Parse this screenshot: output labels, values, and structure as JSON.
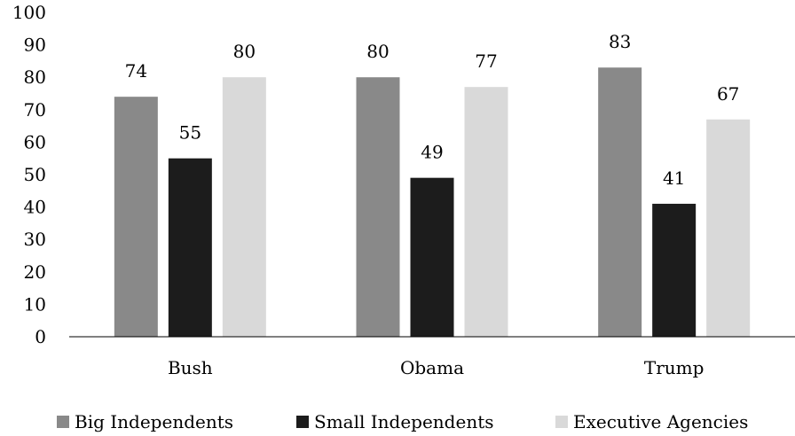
{
  "chart_data": {
    "type": "bar",
    "title": "",
    "xlabel": "",
    "ylabel": "",
    "ylim": [
      0,
      100
    ],
    "yticks": [
      0,
      10,
      20,
      30,
      40,
      50,
      60,
      70,
      80,
      90,
      100
    ],
    "categories": [
      "Bush",
      "Obama",
      "Trump"
    ],
    "series": [
      {
        "name": "Big Independents",
        "color": "#898989",
        "values": [
          74,
          80,
          83
        ]
      },
      {
        "name": "Small Independents",
        "color": "#1c1c1c",
        "values": [
          55,
          49,
          41
        ]
      },
      {
        "name": "Executive Agencies",
        "color": "#d9d9d9",
        "values": [
          80,
          77,
          67
        ]
      }
    ],
    "grid": false,
    "data_labels": true,
    "legend": "bottom"
  }
}
